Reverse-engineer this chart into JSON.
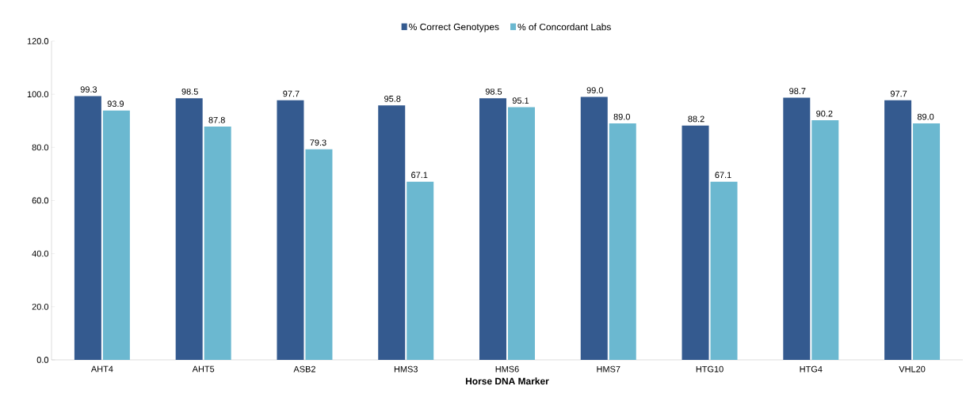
{
  "chart_data": {
    "type": "bar",
    "xlabel": "Horse DNA Marker",
    "categories": [
      "AHT4",
      "AHT5",
      "ASB2",
      "HMS3",
      "HMS6",
      "HMS7",
      "HTG10",
      "HTG4",
      "VHL20"
    ],
    "series": [
      {
        "name": "% Correct Genotypes",
        "color": "#345a8f",
        "values": [
          99.3,
          98.5,
          97.7,
          95.8,
          98.5,
          99.0,
          88.2,
          98.7,
          97.7
        ],
        "value_labels": [
          "99.3",
          "98.5",
          "97.7",
          "95.8",
          "98.5",
          "99.0",
          "88.2",
          "98.7",
          "97.7"
        ]
      },
      {
        "name": "% of Concordant Labs",
        "color": "#6bb8d0",
        "values": [
          93.9,
          87.8,
          79.3,
          67.1,
          95.1,
          89.0,
          67.1,
          90.2,
          89.0
        ],
        "value_labels": [
          "93.9",
          "87.8",
          "79.3",
          "67.1",
          "95.1",
          "89.0",
          "67.1",
          "90.2",
          "89.0"
        ]
      }
    ],
    "ylim": [
      0,
      120
    ],
    "yticks": [
      {
        "value": 0,
        "label": "0.0"
      },
      {
        "value": 20,
        "label": "20.0"
      },
      {
        "value": 40,
        "label": "40.0"
      },
      {
        "value": 60,
        "label": "60.0"
      },
      {
        "value": 80,
        "label": "80.0"
      },
      {
        "value": 100,
        "label": "100.0"
      },
      {
        "value": 120,
        "label": "120.0"
      }
    ],
    "grid": false,
    "legend": "top"
  }
}
